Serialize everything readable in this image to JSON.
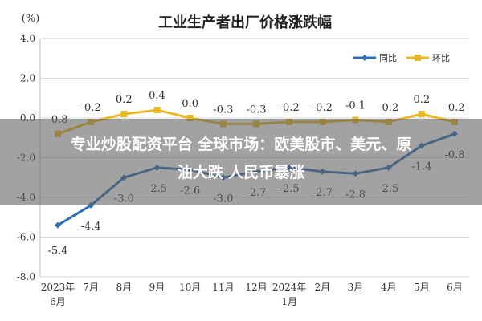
{
  "chart_data": {
    "type": "line",
    "title": "工业生产者出厂价格涨跌幅",
    "ylabel": "(%)",
    "ylim": [
      -8.0,
      4.0
    ],
    "yticks": [
      "4.0",
      "2.0",
      "0.0",
      "-2.0",
      "-4.0",
      "-6.0",
      "-8.0"
    ],
    "categories": [
      [
        "2023年",
        "6月"
      ],
      [
        "7月"
      ],
      [
        "8月"
      ],
      [
        "9月"
      ],
      [
        "10月"
      ],
      [
        "11月"
      ],
      [
        "12月"
      ],
      [
        "2024年",
        "1月"
      ],
      [
        "2月"
      ],
      [
        "3月"
      ],
      [
        "4月"
      ],
      [
        "5月"
      ],
      [
        "6月"
      ]
    ],
    "series": [
      {
        "name": "同比",
        "color": "#2f6fb1",
        "values": [
          -5.4,
          -4.4,
          -3.0,
          -2.5,
          -2.6,
          -3.0,
          -2.7,
          -2.5,
          -2.7,
          -2.8,
          -2.5,
          -1.4,
          -0.8
        ],
        "labels": [
          "-5.4",
          "-4.4",
          "-3.0",
          "-2.5",
          "-2.6",
          "-3.0",
          "-2.7",
          "-2.5",
          "-2.7",
          "-2.8",
          "-2.5",
          "-1.4",
          "-0.8"
        ]
      },
      {
        "name": "环比",
        "color": "#e8b923",
        "values": [
          -0.8,
          -0.2,
          0.2,
          0.4,
          0.0,
          -0.3,
          -0.3,
          -0.2,
          -0.2,
          -0.1,
          -0.2,
          0.2,
          -0.2
        ],
        "labels": [
          "-0.8",
          "-0.2",
          "0.2",
          "0.4",
          "0.0",
          "-0.3",
          "-0.3",
          "-0.2",
          "-0.2",
          "-0.1",
          "-0.2",
          "0.2",
          "-0.2"
        ]
      }
    ],
    "grid": true,
    "legend": "top-right"
  },
  "overlay": {
    "line1": "专业炒股配资平台 全球市场：欧美股市、美元、原",
    "line2": "油大跌 人民币暴涨"
  }
}
